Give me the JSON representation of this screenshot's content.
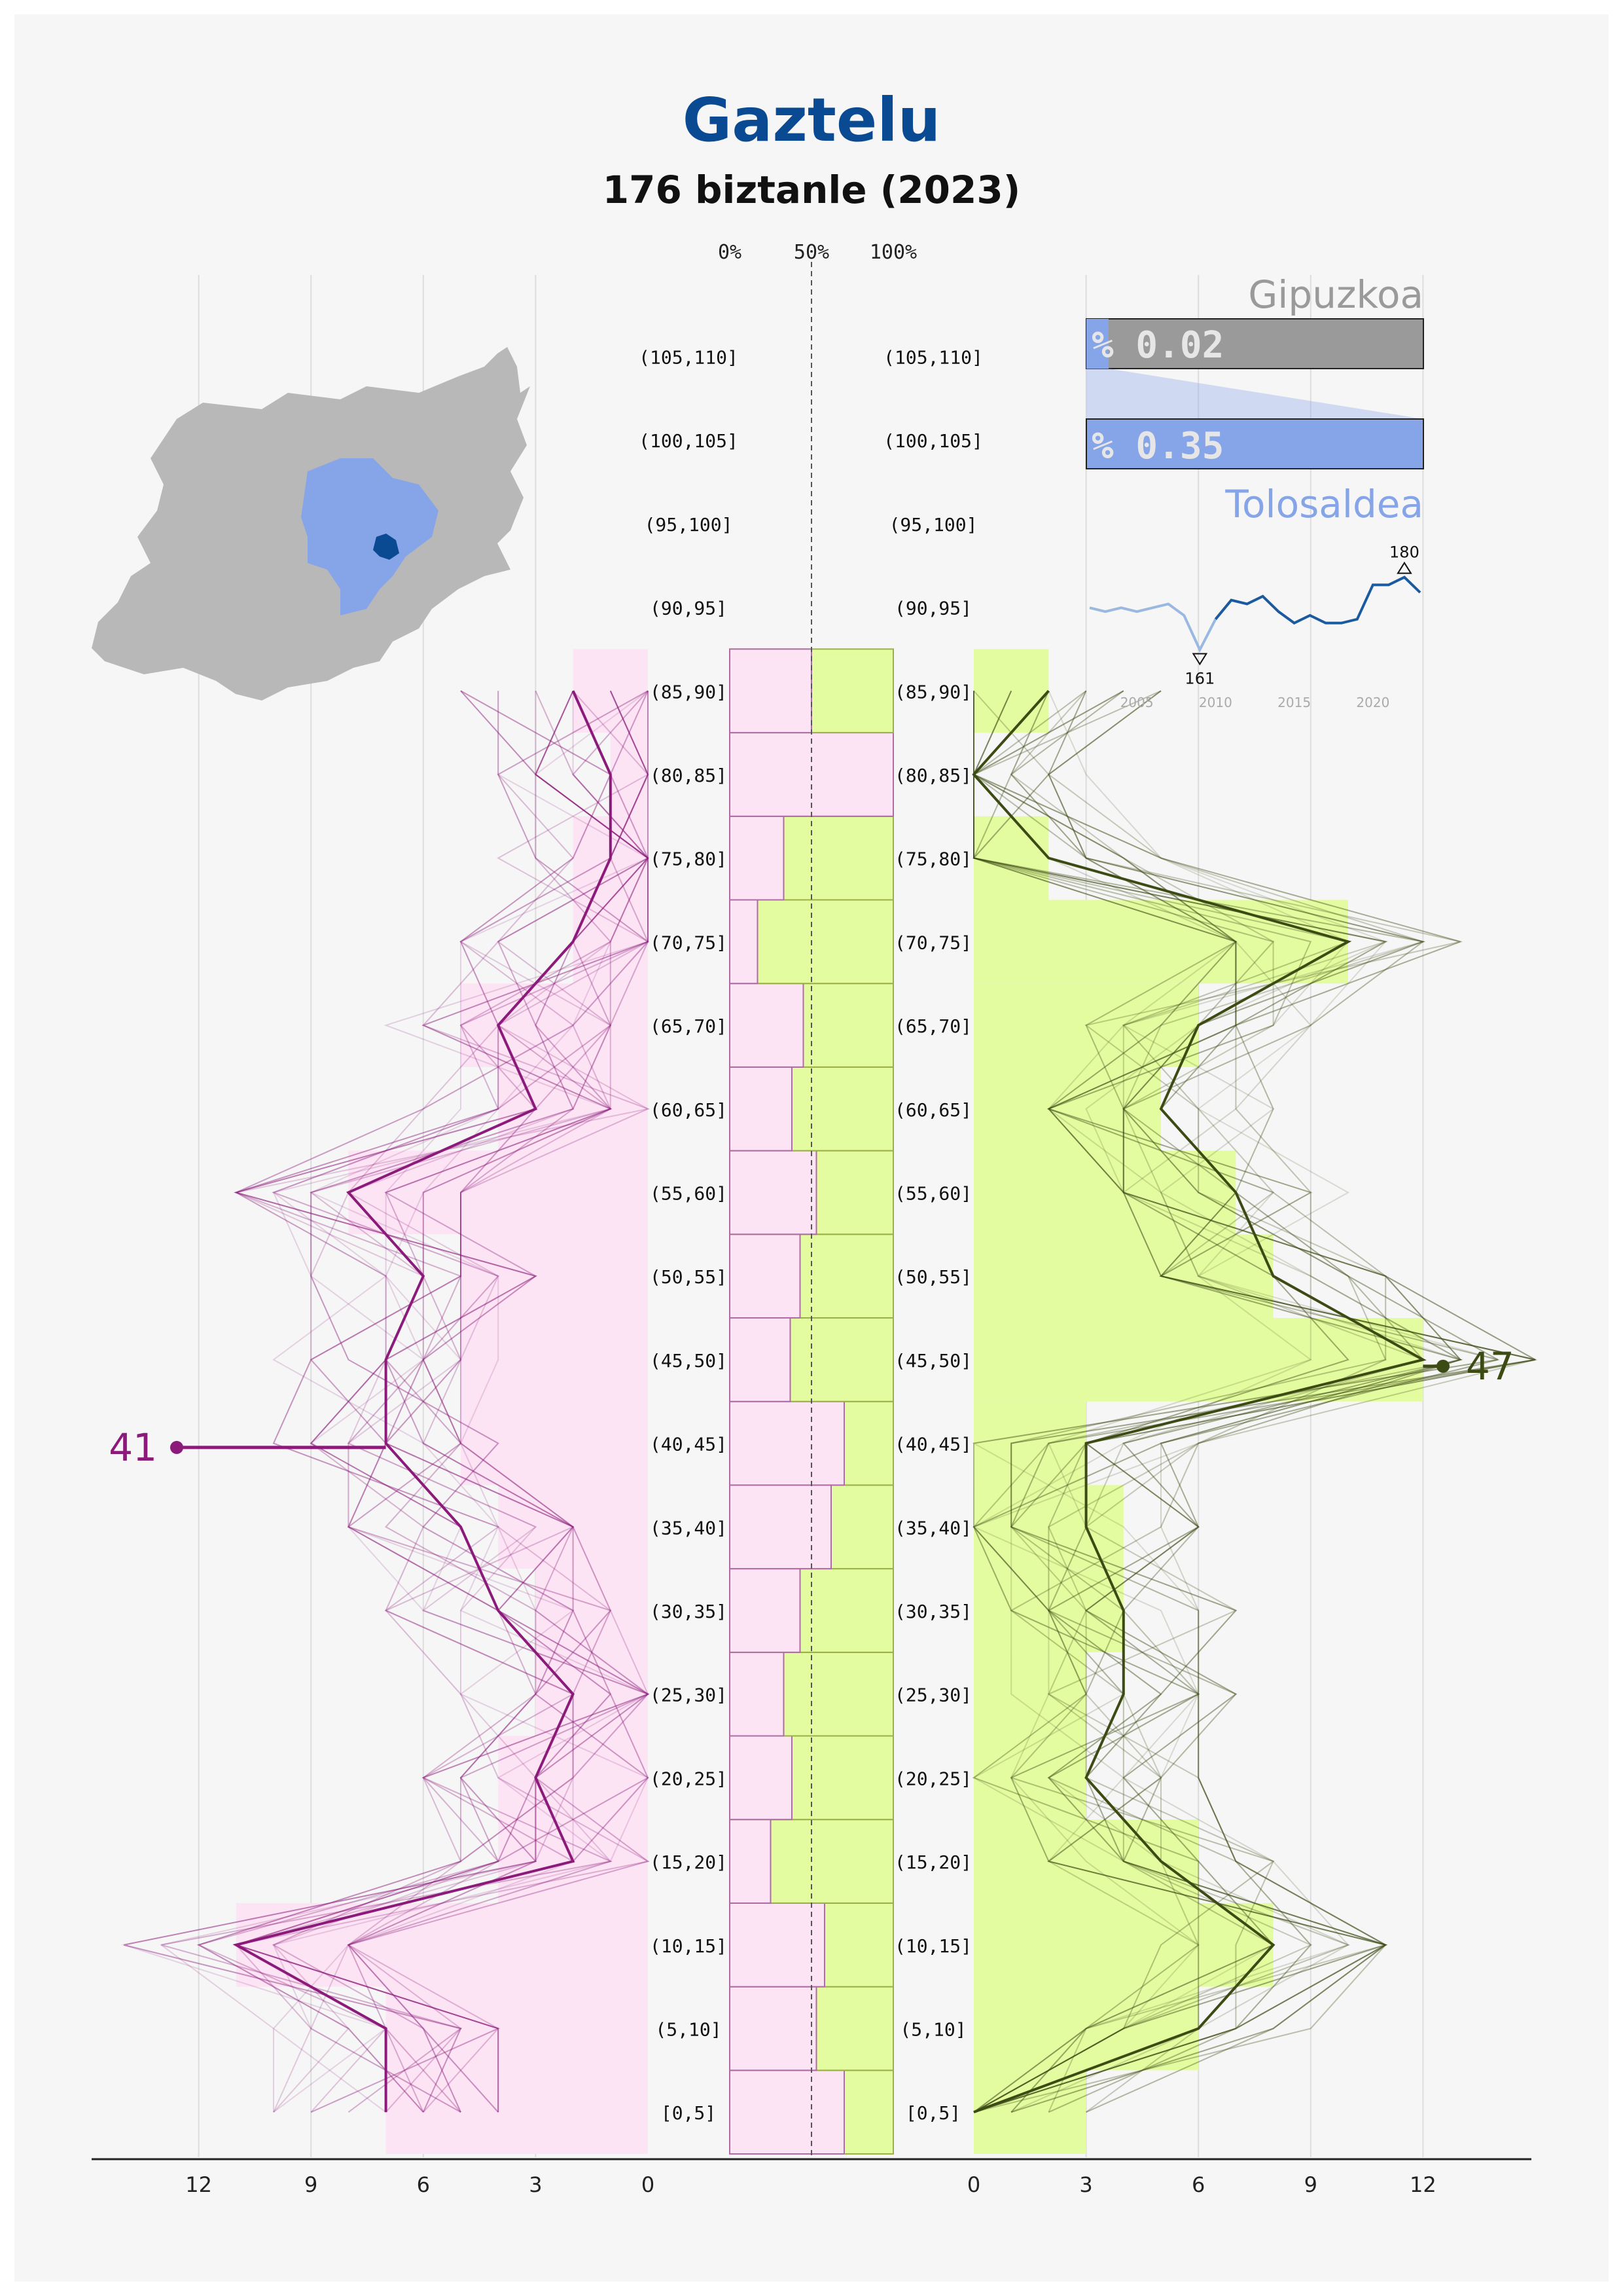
{
  "title": "Gaztelu",
  "subtitle": "176 biztanle (2023)",
  "region": {
    "province": "Gipuzkoa",
    "comarca": "Tolosaldea",
    "province_pct_label": "% 0.02",
    "comarca_pct_label": "% 0.35",
    "province_pct": 0.02,
    "comarca_pct": 0.35
  },
  "colors": {
    "female": "#fce4f4",
    "female_line": "#8b1a7a",
    "male": "#e4fca0",
    "male_line": "#3c4a14",
    "province": "#9a9a9a",
    "comarca": "#86a4e8",
    "title": "#0a4a92",
    "trend": "#1c5aa0"
  },
  "map": {
    "province_shape": "Gipuzkoa outline",
    "highlight": "Tolosaldea",
    "municipality": "Gaztelu"
  },
  "chart_data": {
    "type": "population-pyramid",
    "age_groups": [
      "[0,5]",
      "(5,10]",
      "(10,15]",
      "(15,20]",
      "(20,25]",
      "(25,30]",
      "(30,35]",
      "(35,40]",
      "(40,45]",
      "(45,50]",
      "(50,55]",
      "(55,60]",
      "(60,65]",
      "(65,70]",
      "(70,75]",
      "(75,80]",
      "(80,85]",
      "(85,90]",
      "(90,95]",
      "(95,100]",
      "(100,105]",
      "(105,110]"
    ],
    "female_bars": [
      7,
      7,
      11,
      4,
      4,
      3,
      3,
      4,
      5,
      5,
      5,
      8,
      4,
      5,
      2,
      2,
      1,
      2,
      0,
      0,
      0,
      0
    ],
    "male_bars": [
      3,
      6,
      8,
      6,
      3,
      3,
      4,
      4,
      3,
      12,
      8,
      7,
      5,
      6,
      10,
      2,
      0,
      2,
      0,
      0,
      0,
      0
    ],
    "female_current": [
      7,
      7,
      11,
      2,
      3,
      2,
      4,
      5,
      7,
      7,
      6,
      8,
      3,
      4,
      2,
      1,
      1,
      2,
      0,
      0,
      0,
      0
    ],
    "male_current": [
      0,
      6,
      8,
      5,
      3,
      4,
      4,
      3,
      3,
      12,
      8,
      7,
      5,
      6,
      10,
      2,
      0,
      2,
      0,
      0,
      0,
      0
    ],
    "female_share": [
      0.7,
      0.53,
      0.58,
      0.25,
      0.38,
      0.33,
      0.43,
      0.62,
      0.7,
      0.37,
      0.43,
      0.53,
      0.38,
      0.45,
      0.17,
      0.33,
      1.0,
      0.5,
      0,
      0,
      0,
      0
    ],
    "female_total": 41,
    "male_total": 47,
    "left_axis": {
      "ticks": [
        "12",
        "9",
        "6",
        "3",
        "0"
      ],
      "max": 14
    },
    "right_axis": {
      "ticks": [
        "0",
        "3",
        "6",
        "9",
        "12"
      ],
      "max": 14
    },
    "share_axis": {
      "ticks": [
        "0%",
        "50%",
        "100%"
      ]
    },
    "trend": {
      "years": [
        2002,
        2003,
        2004,
        2005,
        2006,
        2007,
        2008,
        2009,
        2010,
        2011,
        2012,
        2013,
        2014,
        2015,
        2016,
        2017,
        2018,
        2019,
        2020,
        2021,
        2022,
        2023
      ],
      "values": [
        172,
        171,
        172,
        171,
        172,
        173,
        170,
        161,
        169,
        174,
        173,
        175,
        171,
        168,
        170,
        168,
        168,
        169,
        178,
        178,
        180,
        176
      ],
      "min_label": "161",
      "max_label": "180",
      "x_ticks": [
        "2005",
        "2010",
        "2015",
        "2020"
      ]
    }
  }
}
